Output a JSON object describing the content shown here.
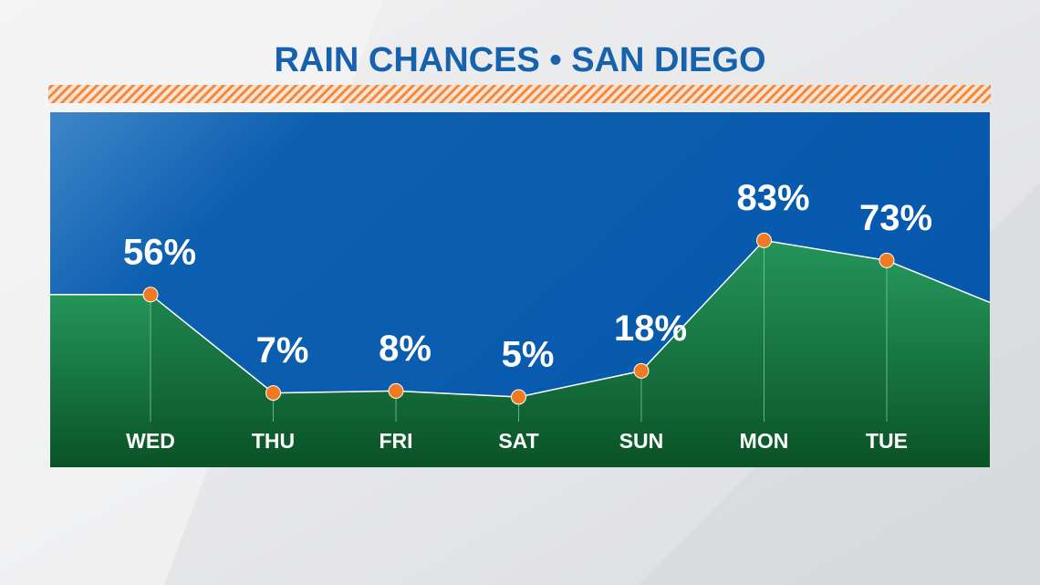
{
  "chart_data": {
    "type": "area",
    "title": "RAIN CHANCES •  SAN DIEGO",
    "categories": [
      "WED",
      "THU",
      "FRI",
      "SAT",
      "SUN",
      "MON",
      "TUE"
    ],
    "values": [
      56,
      7,
      8,
      5,
      18,
      83,
      73
    ],
    "value_labels": [
      "56%",
      "7%",
      "8%",
      "5%",
      "18%",
      "83%",
      "73%"
    ],
    "color": "#1d8a4b",
    "marker_color": "#f07a22"
  }
}
